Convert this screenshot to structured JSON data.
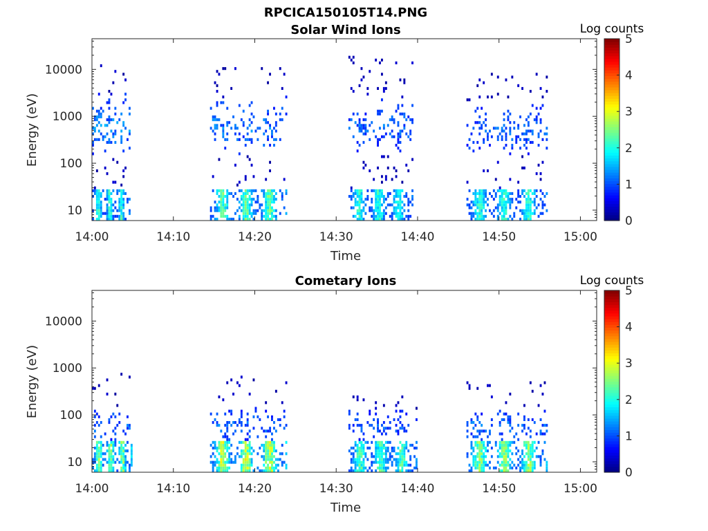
{
  "figure_title": "RPCICA150105T14.PNG",
  "chart_data": [
    {
      "type": "heatmap",
      "title": "Solar Wind Ions",
      "xlabel": "Time",
      "ylabel": "Energy (eV)",
      "x_ticks": [
        "14:00",
        "14:10",
        "14:20",
        "14:30",
        "14:40",
        "14:50",
        "15:00"
      ],
      "x_range_minutes": [
        0,
        62
      ],
      "y_scale": "log",
      "y_ticks": [
        "10",
        "100",
        "1000",
        "10000"
      ],
      "y_range_ev": [
        6,
        45000
      ],
      "colorbar": {
        "label": "Log counts",
        "ticks": [
          "0",
          "1",
          "2",
          "3",
          "4",
          "5"
        ],
        "range": [
          0,
          5
        ],
        "colormap": "jet"
      },
      "bursts": [
        {
          "start_min": 0.0,
          "end_min": 4.6,
          "low_energy_peak": 2.0,
          "core_energy_ev": 600,
          "core_level": 1.4,
          "spread_dec": 1.3,
          "scatter_max_ev": 15000
        },
        {
          "start_min": 14.5,
          "end_min": 24.0,
          "low_energy_peak": 2.3,
          "core_energy_ev": 600,
          "core_level": 1.3,
          "spread_dec": 1.2,
          "scatter_max_ev": 11000
        },
        {
          "start_min": 31.5,
          "end_min": 39.5,
          "low_energy_peak": 2.0,
          "core_energy_ev": 600,
          "core_level": 1.2,
          "spread_dec": 1.1,
          "scatter_max_ev": 20000
        },
        {
          "start_min": 46.0,
          "end_min": 56.0,
          "low_energy_peak": 2.0,
          "core_energy_ev": 500,
          "core_level": 1.2,
          "spread_dec": 1.1,
          "scatter_max_ev": 9000
        }
      ]
    },
    {
      "type": "heatmap",
      "title": "Cometary Ions",
      "xlabel": "Time",
      "ylabel": "Energy (eV)",
      "x_ticks": [
        "14:00",
        "14:10",
        "14:20",
        "14:30",
        "14:40",
        "14:50",
        "15:00"
      ],
      "x_range_minutes": [
        0,
        62
      ],
      "y_scale": "log",
      "y_ticks": [
        "10",
        "100",
        "1000",
        "10000"
      ],
      "y_range_ev": [
        6,
        45000
      ],
      "colorbar": {
        "label": "Log counts",
        "ticks": [
          "0",
          "1",
          "2",
          "3",
          "4",
          "5"
        ],
        "range": [
          0,
          5
        ],
        "colormap": "jet"
      },
      "bursts": [
        {
          "start_min": 0.0,
          "end_min": 4.8,
          "low_energy_peak": 2.6,
          "core_energy_ev": 60,
          "core_level": 1.2,
          "spread_dec": 0.8,
          "scatter_max_ev": 900
        },
        {
          "start_min": 14.5,
          "end_min": 24.0,
          "low_energy_peak": 2.9,
          "core_energy_ev": 60,
          "core_level": 1.2,
          "spread_dec": 0.8,
          "scatter_max_ev": 1000
        },
        {
          "start_min": 31.5,
          "end_min": 40.0,
          "low_energy_peak": 2.3,
          "core_energy_ev": 60,
          "core_level": 1.1,
          "spread_dec": 0.7,
          "scatter_max_ev": 300
        },
        {
          "start_min": 46.0,
          "end_min": 56.0,
          "low_energy_peak": 2.6,
          "core_energy_ev": 60,
          "core_level": 1.2,
          "spread_dec": 0.8,
          "scatter_max_ev": 600
        }
      ]
    }
  ]
}
